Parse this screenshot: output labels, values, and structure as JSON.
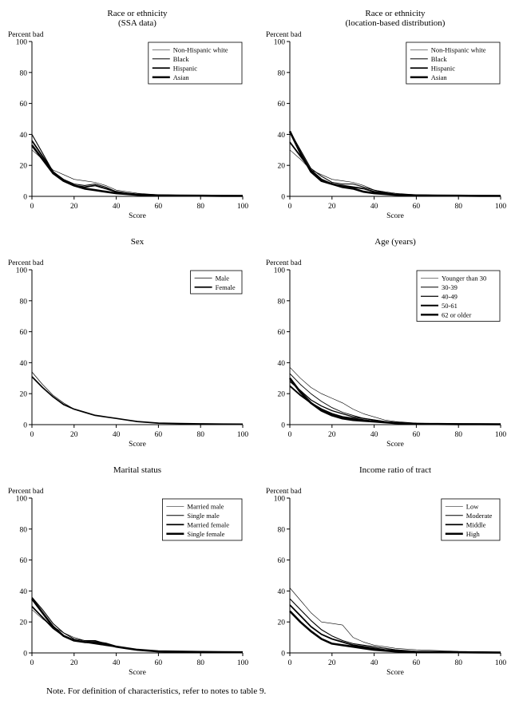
{
  "page": {
    "note": "Note. For definition of characteristics, refer to notes to table 9."
  },
  "chart_data": [
    {
      "type": "line",
      "title_lines": [
        "Race or ethnicity",
        "(SSA data)"
      ],
      "ylabel": "Percent bad",
      "xlabel": "Score",
      "xlim": [
        0,
        100
      ],
      "ylim": [
        0,
        100
      ],
      "xticks": [
        0,
        20,
        40,
        60,
        80,
        100
      ],
      "yticks": [
        0,
        20,
        40,
        60,
        80,
        100
      ],
      "legend_position": "top-right",
      "grid": false,
      "x": [
        0,
        5,
        10,
        15,
        20,
        25,
        30,
        35,
        40,
        45,
        50,
        55,
        60,
        70,
        80,
        90,
        100
      ],
      "series": [
        {
          "name": "Non-Hispanic white",
          "weight": 0.6,
          "color": "#000000",
          "values": [
            30,
            24,
            17,
            14,
            11,
            10,
            9,
            7,
            4,
            3,
            2,
            1.5,
            1,
            0.8,
            0.5,
            0.5,
            0.4
          ]
        },
        {
          "name": "Black",
          "weight": 1.1,
          "color": "#000000",
          "values": [
            40,
            28,
            16,
            11,
            8,
            7,
            8,
            6,
            3,
            2,
            1.5,
            1,
            0.8,
            0.5,
            0.5,
            0.5,
            0.4
          ]
        },
        {
          "name": "Hispanic",
          "weight": 1.8,
          "color": "#000000",
          "values": [
            36,
            26,
            16,
            10,
            7,
            6,
            7,
            5,
            3,
            2,
            1.2,
            1,
            0.8,
            0.5,
            0.5,
            0.4,
            0.3
          ]
        },
        {
          "name": "Asian",
          "weight": 2.6,
          "color": "#000000",
          "values": [
            33,
            24,
            15,
            10,
            7,
            5,
            4,
            3,
            2,
            1.5,
            1,
            0.8,
            0.6,
            0.5,
            0.4,
            0.3,
            0.3
          ]
        }
      ]
    },
    {
      "type": "line",
      "title_lines": [
        "Race or ethnicity",
        "(location-based distribution)"
      ],
      "ylabel": "Percent bad",
      "xlabel": "Score",
      "xlim": [
        0,
        100
      ],
      "ylim": [
        0,
        100
      ],
      "xticks": [
        0,
        20,
        40,
        60,
        80,
        100
      ],
      "yticks": [
        0,
        20,
        40,
        60,
        80,
        100
      ],
      "legend_position": "top-right",
      "grid": false,
      "x": [
        0,
        5,
        10,
        15,
        20,
        25,
        30,
        35,
        40,
        45,
        50,
        55,
        60,
        70,
        80,
        90,
        100
      ],
      "series": [
        {
          "name": "Non-Hispanic white",
          "weight": 0.6,
          "color": "#000000",
          "values": [
            30,
            24,
            17,
            14,
            11,
            10,
            9,
            7,
            4,
            3,
            2,
            1.5,
            1,
            0.8,
            0.5,
            0.5,
            0.4
          ]
        },
        {
          "name": "Black",
          "weight": 1.1,
          "color": "#000000",
          "values": [
            42,
            30,
            18,
            13,
            9,
            8,
            8,
            6,
            4,
            2.5,
            1.5,
            1,
            0.8,
            0.6,
            0.5,
            0.5,
            0.4
          ]
        },
        {
          "name": "Hispanic",
          "weight": 1.8,
          "color": "#000000",
          "values": [
            35,
            26,
            17,
            11,
            8,
            7,
            6,
            5,
            3,
            2,
            1.2,
            1,
            0.8,
            0.5,
            0.5,
            0.4,
            0.3
          ]
        },
        {
          "name": "Asian",
          "weight": 2.6,
          "color": "#000000",
          "values": [
            42,
            28,
            16,
            10,
            8,
            6,
            5,
            3,
            2,
            1.5,
            1,
            0.8,
            0.6,
            0.5,
            0.4,
            0.3,
            0.3
          ]
        }
      ]
    },
    {
      "type": "line",
      "title_lines": [
        "Sex"
      ],
      "ylabel": "Percent bad",
      "xlabel": "Score",
      "xlim": [
        0,
        100
      ],
      "ylim": [
        0,
        100
      ],
      "xticks": [
        0,
        20,
        40,
        60,
        80,
        100
      ],
      "yticks": [
        0,
        20,
        40,
        60,
        80,
        100
      ],
      "legend_position": "top-right",
      "grid": false,
      "x": [
        0,
        5,
        10,
        15,
        20,
        25,
        30,
        35,
        40,
        45,
        50,
        55,
        60,
        70,
        80,
        90,
        100
      ],
      "series": [
        {
          "name": "Male",
          "weight": 0.7,
          "color": "#000000",
          "values": [
            34,
            26,
            19,
            14,
            10,
            8,
            6,
            5,
            4,
            3,
            2,
            1.5,
            1,
            0.7,
            0.5,
            0.4,
            0.3
          ]
        },
        {
          "name": "Female",
          "weight": 1.7,
          "color": "#000000",
          "values": [
            31,
            24,
            18,
            13,
            10,
            8,
            6,
            5,
            4,
            3,
            2,
            1.5,
            1,
            0.7,
            0.5,
            0.4,
            0.3
          ]
        }
      ]
    },
    {
      "type": "line",
      "title_lines": [
        "Age (years)"
      ],
      "ylabel": "Percent bad",
      "xlabel": "Score",
      "xlim": [
        0,
        100
      ],
      "ylim": [
        0,
        100
      ],
      "xticks": [
        0,
        20,
        40,
        60,
        80,
        100
      ],
      "yticks": [
        0,
        20,
        40,
        60,
        80,
        100
      ],
      "legend_position": "top-right",
      "grid": false,
      "x": [
        0,
        5,
        10,
        15,
        20,
        25,
        30,
        35,
        40,
        45,
        50,
        55,
        60,
        70,
        80,
        90,
        100
      ],
      "series": [
        {
          "name": "Younger than 30",
          "weight": 0.6,
          "color": "#000000",
          "values": [
            37,
            30,
            24,
            20,
            17,
            14,
            10,
            7,
            5,
            3,
            2,
            1.5,
            1,
            0.8,
            0.5,
            0.5,
            0.4
          ]
        },
        {
          "name": "30-39",
          "weight": 0.9,
          "color": "#000000",
          "values": [
            33,
            26,
            20,
            15,
            11,
            8,
            6,
            4,
            3,
            2,
            1.5,
            1,
            0.8,
            0.6,
            0.5,
            0.4,
            0.3
          ]
        },
        {
          "name": "40-49",
          "weight": 1.3,
          "color": "#000000",
          "values": [
            28,
            22,
            16,
            12,
            9,
            7,
            5,
            4,
            3,
            2,
            1.5,
            1,
            0.8,
            0.5,
            0.4,
            0.3,
            0.3
          ]
        },
        {
          "name": "50-61",
          "weight": 1.9,
          "color": "#000000",
          "values": [
            25,
            19,
            14,
            10,
            7,
            5,
            4,
            3,
            2,
            1.5,
            1,
            0.8,
            0.6,
            0.5,
            0.4,
            0.3,
            0.2
          ]
        },
        {
          "name": "62 or older",
          "weight": 2.6,
          "color": "#000000",
          "values": [
            30,
            21,
            14,
            9,
            6,
            4,
            3,
            2.5,
            2,
            1.5,
            1,
            0.8,
            0.5,
            0.4,
            0.3,
            0.3,
            0.2
          ]
        }
      ]
    },
    {
      "type": "line",
      "title_lines": [
        "Marital status"
      ],
      "ylabel": "Percent bad",
      "xlabel": "Score",
      "xlim": [
        0,
        100
      ],
      "ylim": [
        0,
        100
      ],
      "xticks": [
        0,
        20,
        40,
        60,
        80,
        100
      ],
      "yticks": [
        0,
        20,
        40,
        60,
        80,
        100
      ],
      "legend_position": "top-right",
      "grid": false,
      "x": [
        0,
        5,
        10,
        15,
        20,
        25,
        30,
        35,
        40,
        45,
        50,
        55,
        60,
        70,
        80,
        90,
        100
      ],
      "series": [
        {
          "name": "Married male",
          "weight": 0.6,
          "color": "#000000",
          "values": [
            28,
            22,
            17,
            13,
            10,
            8,
            7,
            5,
            4,
            3,
            2,
            1.5,
            1,
            0.8,
            0.5,
            0.4,
            0.3
          ]
        },
        {
          "name": "Single male",
          "weight": 1.1,
          "color": "#000000",
          "values": [
            36,
            28,
            19,
            13,
            9,
            8,
            8,
            6,
            4,
            3,
            2,
            1.5,
            1,
            0.8,
            0.6,
            0.5,
            0.4
          ]
        },
        {
          "name": "Married female",
          "weight": 1.8,
          "color": "#000000",
          "values": [
            30,
            23,
            16,
            11,
            8,
            7,
            6,
            5,
            4,
            3,
            2,
            1.5,
            1,
            0.7,
            0.5,
            0.4,
            0.3
          ]
        },
        {
          "name": "Single female",
          "weight": 2.6,
          "color": "#000000",
          "values": [
            35,
            26,
            17,
            11,
            8,
            7,
            7,
            6,
            4,
            3,
            2,
            1.5,
            1,
            0.8,
            0.6,
            0.5,
            0.4
          ]
        }
      ]
    },
    {
      "type": "line",
      "title_lines": [
        "Income ratio of tract"
      ],
      "ylabel": "Percent bad",
      "xlabel": "Score",
      "xlim": [
        0,
        100
      ],
      "ylim": [
        0,
        100
      ],
      "xticks": [
        0,
        20,
        40,
        60,
        80,
        100
      ],
      "yticks": [
        0,
        20,
        40,
        60,
        80,
        100
      ],
      "legend_position": "top-right",
      "grid": false,
      "x": [
        0,
        5,
        10,
        15,
        20,
        25,
        30,
        35,
        40,
        45,
        50,
        55,
        60,
        70,
        80,
        90,
        100
      ],
      "series": [
        {
          "name": "Low",
          "weight": 0.6,
          "color": "#000000",
          "values": [
            42,
            34,
            26,
            20,
            19,
            18,
            10,
            7,
            5,
            4,
            3,
            2.5,
            2,
            1.5,
            1,
            0.8,
            0.5
          ]
        },
        {
          "name": "Moderate",
          "weight": 1.1,
          "color": "#000000",
          "values": [
            35,
            28,
            21,
            15,
            11,
            8,
            6,
            5,
            4,
            3,
            2,
            1.5,
            1,
            0.8,
            0.6,
            0.5,
            0.4
          ]
        },
        {
          "name": "Middle",
          "weight": 1.8,
          "color": "#000000",
          "values": [
            31,
            24,
            17,
            12,
            9,
            7,
            5,
            4,
            3,
            2,
            1.5,
            1,
            0.8,
            0.6,
            0.5,
            0.4,
            0.3
          ]
        },
        {
          "name": "High",
          "weight": 2.6,
          "color": "#000000",
          "values": [
            27,
            20,
            14,
            9,
            6,
            5,
            4,
            3,
            2,
            1.5,
            1,
            0.8,
            0.6,
            0.5,
            0.4,
            0.3,
            0.2
          ]
        }
      ]
    }
  ]
}
